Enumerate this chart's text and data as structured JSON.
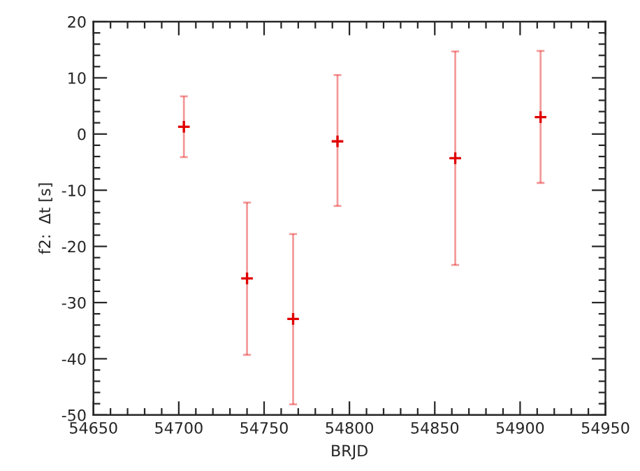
{
  "chart_data": {
    "type": "scatter",
    "xlabel": "BRJD",
    "ylabel": "f2:  Δt [s]",
    "x": [
      54703,
      54740,
      54767,
      54793,
      54862,
      54912
    ],
    "series": [
      {
        "color": "#e00000",
        "values": [
          1.3,
          -25.7,
          -32.9,
          -1.3,
          -4.3,
          3.0
        ],
        "errors": [
          [
            -4.1,
            6.7
          ],
          [
            -39.3,
            -12.2
          ],
          [
            -48.1,
            -17.8
          ],
          [
            -12.8,
            10.5
          ],
          [
            -23.3,
            14.7
          ],
          [
            -8.7,
            14.8
          ]
        ]
      }
    ],
    "marker": "cross",
    "xlim": [
      54650,
      54950
    ],
    "xticks": [
      54650,
      54700,
      54750,
      54800,
      54850,
      54900,
      54950
    ],
    "ylim": [
      -50,
      20
    ],
    "yticks": [
      -50,
      -40,
      -30,
      -20,
      -10,
      0,
      10,
      20
    ],
    "grid": false,
    "legend": false
  }
}
